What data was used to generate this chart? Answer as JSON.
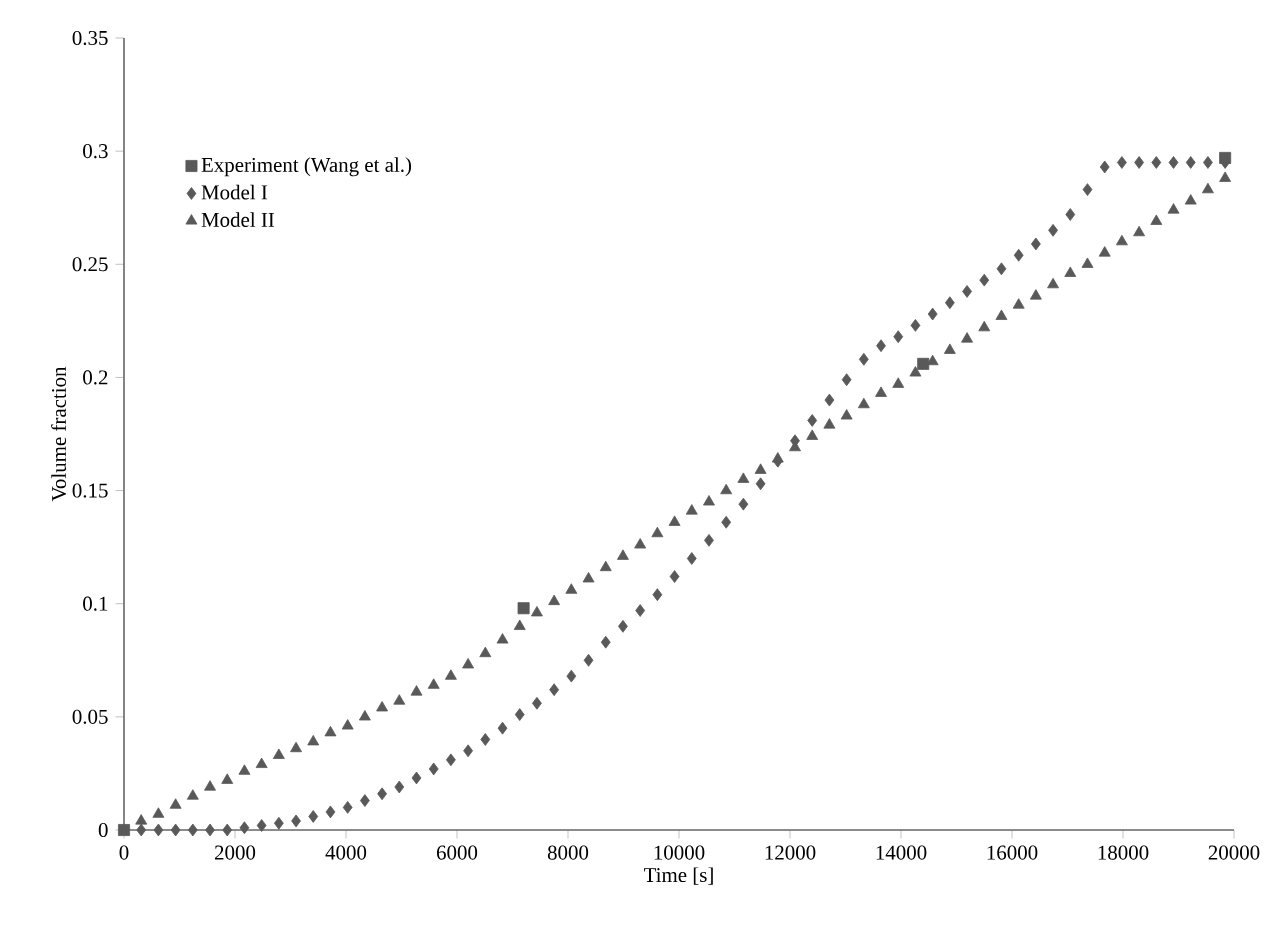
{
  "chart_data": {
    "type": "scatter",
    "xlabel": "Time [s]",
    "ylabel": "Volume fraction",
    "xlim": [
      0,
      20000
    ],
    "ylim": [
      0,
      0.35
    ],
    "xticks": [
      0,
      2000,
      4000,
      6000,
      8000,
      10000,
      12000,
      14000,
      16000,
      18000,
      20000
    ],
    "yticks": [
      0,
      0.05,
      0.1,
      0.15,
      0.2,
      0.25,
      0.3,
      0.35
    ],
    "legend": "top left",
    "grid": false,
    "series": [
      {
        "name": "Experiment (Wang et al.)",
        "color": "#595959",
        "marker": "square",
        "x": [
          0,
          7200,
          14400,
          19840
        ],
        "values": [
          0,
          0.098,
          0.206,
          0.297
        ]
      },
      {
        "name": "Model I",
        "color": "#595959",
        "marker": "diamond",
        "x": [
          310,
          620,
          930,
          1240,
          1550,
          1860,
          2170,
          2480,
          2790,
          3100,
          3410,
          3720,
          4030,
          4340,
          4650,
          4960,
          5270,
          5580,
          5890,
          6200,
          6510,
          6820,
          7130,
          7440,
          7750,
          8060,
          8370,
          8680,
          8990,
          9300,
          9610,
          9920,
          10230,
          10540,
          10850,
          11160,
          11470,
          11780,
          12090,
          12400,
          12710,
          13020,
          13330,
          13640,
          13950,
          14260,
          14570,
          14880,
          15190,
          15500,
          15810,
          16120,
          16430,
          16740,
          17050,
          17360,
          17670,
          17980,
          18290,
          18600,
          18910,
          19220,
          19530,
          19840
        ],
        "values": [
          0,
          0,
          0,
          0,
          0,
          0,
          0.001,
          0.002,
          0.003,
          0.004,
          0.006,
          0.008,
          0.01,
          0.013,
          0.016,
          0.019,
          0.023,
          0.027,
          0.031,
          0.035,
          0.04,
          0.045,
          0.051,
          0.056,
          0.062,
          0.068,
          0.075,
          0.083,
          0.09,
          0.097,
          0.104,
          0.112,
          0.12,
          0.128,
          0.136,
          0.144,
          0.153,
          0.163,
          0.172,
          0.181,
          0.19,
          0.199,
          0.208,
          0.214,
          0.218,
          0.223,
          0.228,
          0.233,
          0.238,
          0.243,
          0.248,
          0.254,
          0.259,
          0.265,
          0.272,
          0.283,
          0.293,
          0.295,
          0.295,
          0.295,
          0.295,
          0.295,
          0.295,
          0.295
        ]
      },
      {
        "name": "Model II",
        "color": "#595959",
        "marker": "triangle",
        "x": [
          310,
          620,
          930,
          1240,
          1550,
          1860,
          2170,
          2480,
          2790,
          3100,
          3410,
          3720,
          4030,
          4340,
          4650,
          4960,
          5270,
          5580,
          5890,
          6200,
          6510,
          6820,
          7130,
          7440,
          7750,
          8060,
          8370,
          8680,
          8990,
          9300,
          9610,
          9920,
          10230,
          10540,
          10850,
          11160,
          11470,
          11780,
          12090,
          12400,
          12710,
          13020,
          13330,
          13640,
          13950,
          14260,
          14570,
          14880,
          15190,
          15500,
          15810,
          16120,
          16430,
          16740,
          17050,
          17360,
          17670,
          17980,
          18290,
          18600,
          18910,
          19220,
          19530,
          19840
        ],
        "values": [
          0.004,
          0.007,
          0.011,
          0.015,
          0.019,
          0.022,
          0.026,
          0.029,
          0.033,
          0.036,
          0.039,
          0.043,
          0.046,
          0.05,
          0.054,
          0.057,
          0.061,
          0.064,
          0.068,
          0.073,
          0.078,
          0.084,
          0.09,
          0.096,
          0.101,
          0.106,
          0.111,
          0.116,
          0.121,
          0.126,
          0.131,
          0.136,
          0.141,
          0.145,
          0.15,
          0.155,
          0.159,
          0.164,
          0.169,
          0.174,
          0.179,
          0.183,
          0.188,
          0.193,
          0.197,
          0.202,
          0.207,
          0.212,
          0.217,
          0.222,
          0.227,
          0.232,
          0.236,
          0.241,
          0.246,
          0.25,
          0.255,
          0.26,
          0.264,
          0.269,
          0.274,
          0.278,
          0.283,
          0.288
        ]
      }
    ]
  }
}
